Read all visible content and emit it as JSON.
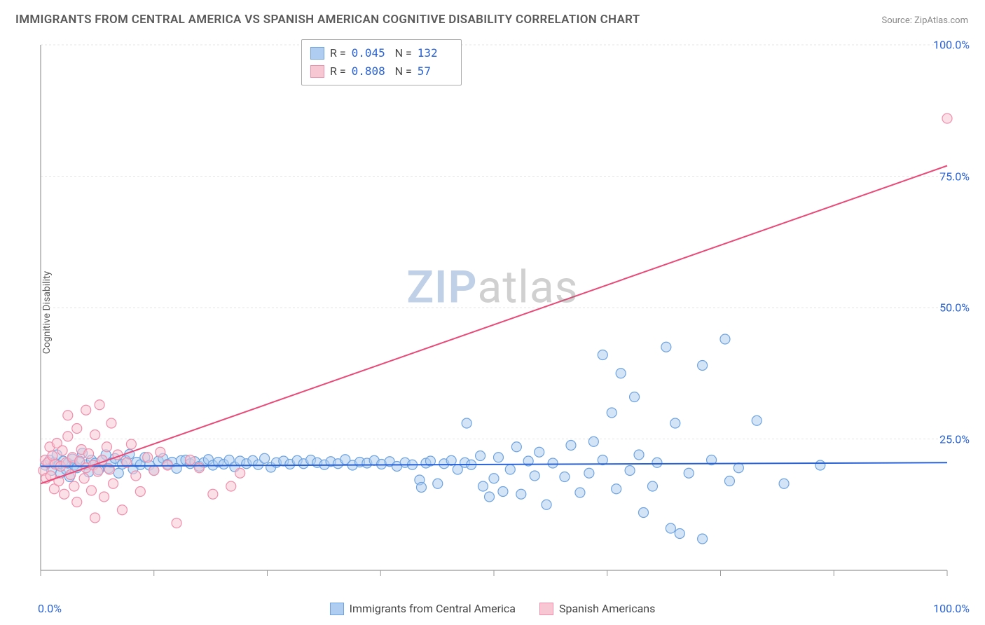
{
  "title": "IMMIGRANTS FROM CENTRAL AMERICA VS SPANISH AMERICAN COGNITIVE DISABILITY CORRELATION CHART",
  "source_prefix": "Source: ",
  "source_name": "ZipAtlas.com",
  "ylabel": "Cognitive Disability",
  "watermark_a": "ZIP",
  "watermark_b": "atlas",
  "chart": {
    "type": "scatter",
    "xlim": [
      0,
      100
    ],
    "ylim": [
      0,
      100
    ],
    "background_color": "#ffffff",
    "grid_color": "#e5e5e5",
    "grid_dash": "3,3",
    "axis_color": "#999999",
    "yticks": [
      25,
      50,
      75,
      100
    ],
    "ytick_labels": [
      "25.0%",
      "50.0%",
      "75.0%",
      "100.0%"
    ],
    "xtick_positions": [
      0,
      12.5,
      25,
      37.5,
      50,
      62.5,
      75,
      87.5,
      100
    ],
    "xtick_left_label": "0.0%",
    "xtick_right_label": "100.0%",
    "marker_radius": 7,
    "marker_opacity": 0.55,
    "line_width": 2,
    "series": [
      {
        "name": "Immigrants from Central America",
        "color_fill": "#aecdf0",
        "color_stroke": "#6fa3df",
        "line_color": "#2962d6",
        "R": "0.045",
        "N": "132",
        "trend": {
          "x1": 0,
          "y1": 19.8,
          "x2": 100,
          "y2": 20.5
        },
        "points": [
          [
            0.5,
            20
          ],
          [
            1,
            21
          ],
          [
            1.2,
            19
          ],
          [
            1.5,
            20.5
          ],
          [
            1.8,
            22
          ],
          [
            2,
            20
          ],
          [
            2.2,
            18.5
          ],
          [
            2.5,
            20.8
          ],
          [
            2.8,
            19.2
          ],
          [
            3,
            20.4
          ],
          [
            3.2,
            17.8
          ],
          [
            3.5,
            21.2
          ],
          [
            3.7,
            20
          ],
          [
            4,
            19.5
          ],
          [
            4.3,
            20.6
          ],
          [
            4.6,
            22.3
          ],
          [
            5,
            20.1
          ],
          [
            5.3,
            18.7
          ],
          [
            5.6,
            21
          ],
          [
            6,
            20.4
          ],
          [
            6.4,
            19.1
          ],
          [
            6.8,
            20.9
          ],
          [
            7.2,
            22
          ],
          [
            7.5,
            19.4
          ],
          [
            7.8,
            20.5
          ],
          [
            8.2,
            21.3
          ],
          [
            8.6,
            18.5
          ],
          [
            9,
            20.2
          ],
          [
            9.4,
            20.9
          ],
          [
            9.8,
            22.1
          ],
          [
            10.2,
            19.3
          ],
          [
            10.6,
            20.6
          ],
          [
            11,
            20.1
          ],
          [
            11.5,
            21.5
          ],
          [
            12,
            20
          ],
          [
            12.5,
            19
          ],
          [
            13,
            20.8
          ],
          [
            13.5,
            21.3
          ],
          [
            14,
            20.2
          ],
          [
            14.5,
            20.6
          ],
          [
            15,
            19.4
          ],
          [
            15.5,
            20.9
          ],
          [
            16,
            21
          ],
          [
            16.5,
            20.3
          ],
          [
            17,
            20.7
          ],
          [
            17.5,
            19.8
          ],
          [
            18,
            20.5
          ],
          [
            18.5,
            21.1
          ],
          [
            19,
            20
          ],
          [
            19.6,
            20.6
          ],
          [
            20.2,
            20.2
          ],
          [
            20.8,
            21
          ],
          [
            21.4,
            19.7
          ],
          [
            22,
            20.8
          ],
          [
            22.7,
            20.3
          ],
          [
            23.4,
            20.9
          ],
          [
            24,
            20.1
          ],
          [
            24.7,
            21.3
          ],
          [
            25.4,
            19.6
          ],
          [
            26,
            20.5
          ],
          [
            26.8,
            20.8
          ],
          [
            27.5,
            20.2
          ],
          [
            28.3,
            20.9
          ],
          [
            29,
            20.3
          ],
          [
            29.8,
            21
          ],
          [
            30.5,
            20.5
          ],
          [
            31.3,
            20.1
          ],
          [
            32,
            20.7
          ],
          [
            32.8,
            20.3
          ],
          [
            33.6,
            21.1
          ],
          [
            34.4,
            20
          ],
          [
            35.2,
            20.6
          ],
          [
            36,
            20.4
          ],
          [
            36.8,
            20.9
          ],
          [
            37.6,
            20.2
          ],
          [
            38.5,
            20.7
          ],
          [
            39.3,
            19.8
          ],
          [
            40.2,
            20.5
          ],
          [
            41,
            20.1
          ],
          [
            41.8,
            17.2
          ],
          [
            42,
            15.8
          ],
          [
            42.5,
            20.4
          ],
          [
            43,
            20.8
          ],
          [
            43.8,
            16.5
          ],
          [
            44.5,
            20.3
          ],
          [
            45.3,
            20.9
          ],
          [
            46,
            19.2
          ],
          [
            46.8,
            20.5
          ],
          [
            47,
            28
          ],
          [
            47.5,
            20.1
          ],
          [
            48.5,
            21.8
          ],
          [
            48.8,
            16
          ],
          [
            49.5,
            14
          ],
          [
            50,
            17.5
          ],
          [
            50.5,
            21.5
          ],
          [
            51,
            15
          ],
          [
            51.8,
            19.2
          ],
          [
            52.5,
            23.5
          ],
          [
            53,
            14.5
          ],
          [
            53.8,
            20.8
          ],
          [
            54.5,
            18
          ],
          [
            55,
            22.5
          ],
          [
            55.8,
            12.5
          ],
          [
            56.5,
            20.4
          ],
          [
            57.8,
            17.8
          ],
          [
            58.5,
            23.8
          ],
          [
            59.5,
            14.8
          ],
          [
            60.5,
            18.5
          ],
          [
            61,
            24.5
          ],
          [
            62,
            21
          ],
          [
            62,
            41
          ],
          [
            63,
            30
          ],
          [
            63.5,
            15.5
          ],
          [
            64,
            37.5
          ],
          [
            65,
            19
          ],
          [
            65.5,
            33
          ],
          [
            66,
            22
          ],
          [
            66.5,
            11
          ],
          [
            67.5,
            16
          ],
          [
            68,
            20.5
          ],
          [
            69,
            42.5
          ],
          [
            69.5,
            8
          ],
          [
            70,
            28
          ],
          [
            70.5,
            7
          ],
          [
            71.5,
            18.5
          ],
          [
            73,
            39
          ],
          [
            73,
            6
          ],
          [
            74,
            21
          ],
          [
            75.5,
            44
          ],
          [
            76,
            17
          ],
          [
            77,
            19.5
          ],
          [
            79,
            28.5
          ],
          [
            82,
            16.5
          ],
          [
            86,
            20
          ]
        ]
      },
      {
        "name": "Spanish Americans",
        "color_fill": "#f7c7d4",
        "color_stroke": "#ef8fac",
        "line_color": "#e94a78",
        "R": "0.808",
        "N": "57",
        "trend": {
          "x1": 0,
          "y1": 16.5,
          "x2": 100,
          "y2": 77
        },
        "points": [
          [
            0.3,
            19
          ],
          [
            0.5,
            21
          ],
          [
            0.6,
            17.5
          ],
          [
            0.8,
            20.5
          ],
          [
            1,
            23.5
          ],
          [
            1.1,
            18
          ],
          [
            1.3,
            21.8
          ],
          [
            1.5,
            15.5
          ],
          [
            1.6,
            20.2
          ],
          [
            1.8,
            24.2
          ],
          [
            2,
            17
          ],
          [
            2.2,
            19.8
          ],
          [
            2.4,
            22.8
          ],
          [
            2.6,
            14.5
          ],
          [
            2.8,
            20.5
          ],
          [
            3,
            25.5
          ],
          [
            3,
            29.5
          ],
          [
            3.3,
            18.2
          ],
          [
            3.5,
            21.5
          ],
          [
            3.7,
            16
          ],
          [
            4,
            27
          ],
          [
            4,
            13
          ],
          [
            4.3,
            20.8
          ],
          [
            4.5,
            23
          ],
          [
            4.8,
            17.5
          ],
          [
            5,
            19.5
          ],
          [
            5,
            30.5
          ],
          [
            5.3,
            22.2
          ],
          [
            5.6,
            15.2
          ],
          [
            5.8,
            20
          ],
          [
            6,
            25.8
          ],
          [
            6,
            10
          ],
          [
            6.3,
            18.8
          ],
          [
            6.5,
            31.5
          ],
          [
            6.8,
            21
          ],
          [
            7,
            14
          ],
          [
            7.3,
            23.5
          ],
          [
            7.6,
            19.2
          ],
          [
            7.8,
            28
          ],
          [
            8,
            16.5
          ],
          [
            8.5,
            22
          ],
          [
            9,
            11.5
          ],
          [
            9.5,
            20.5
          ],
          [
            10,
            24
          ],
          [
            10.5,
            18
          ],
          [
            11,
            15
          ],
          [
            11.8,
            21.5
          ],
          [
            12.5,
            19
          ],
          [
            13.2,
            22.5
          ],
          [
            14,
            20
          ],
          [
            15,
            9
          ],
          [
            16.5,
            21
          ],
          [
            17.5,
            19.5
          ],
          [
            19,
            14.5
          ],
          [
            21,
            16
          ],
          [
            22,
            18.5
          ],
          [
            100,
            86
          ]
        ]
      }
    ]
  },
  "bottom_legend": {
    "item1": "Immigrants from Central America",
    "item2": "Spanish Americans"
  }
}
